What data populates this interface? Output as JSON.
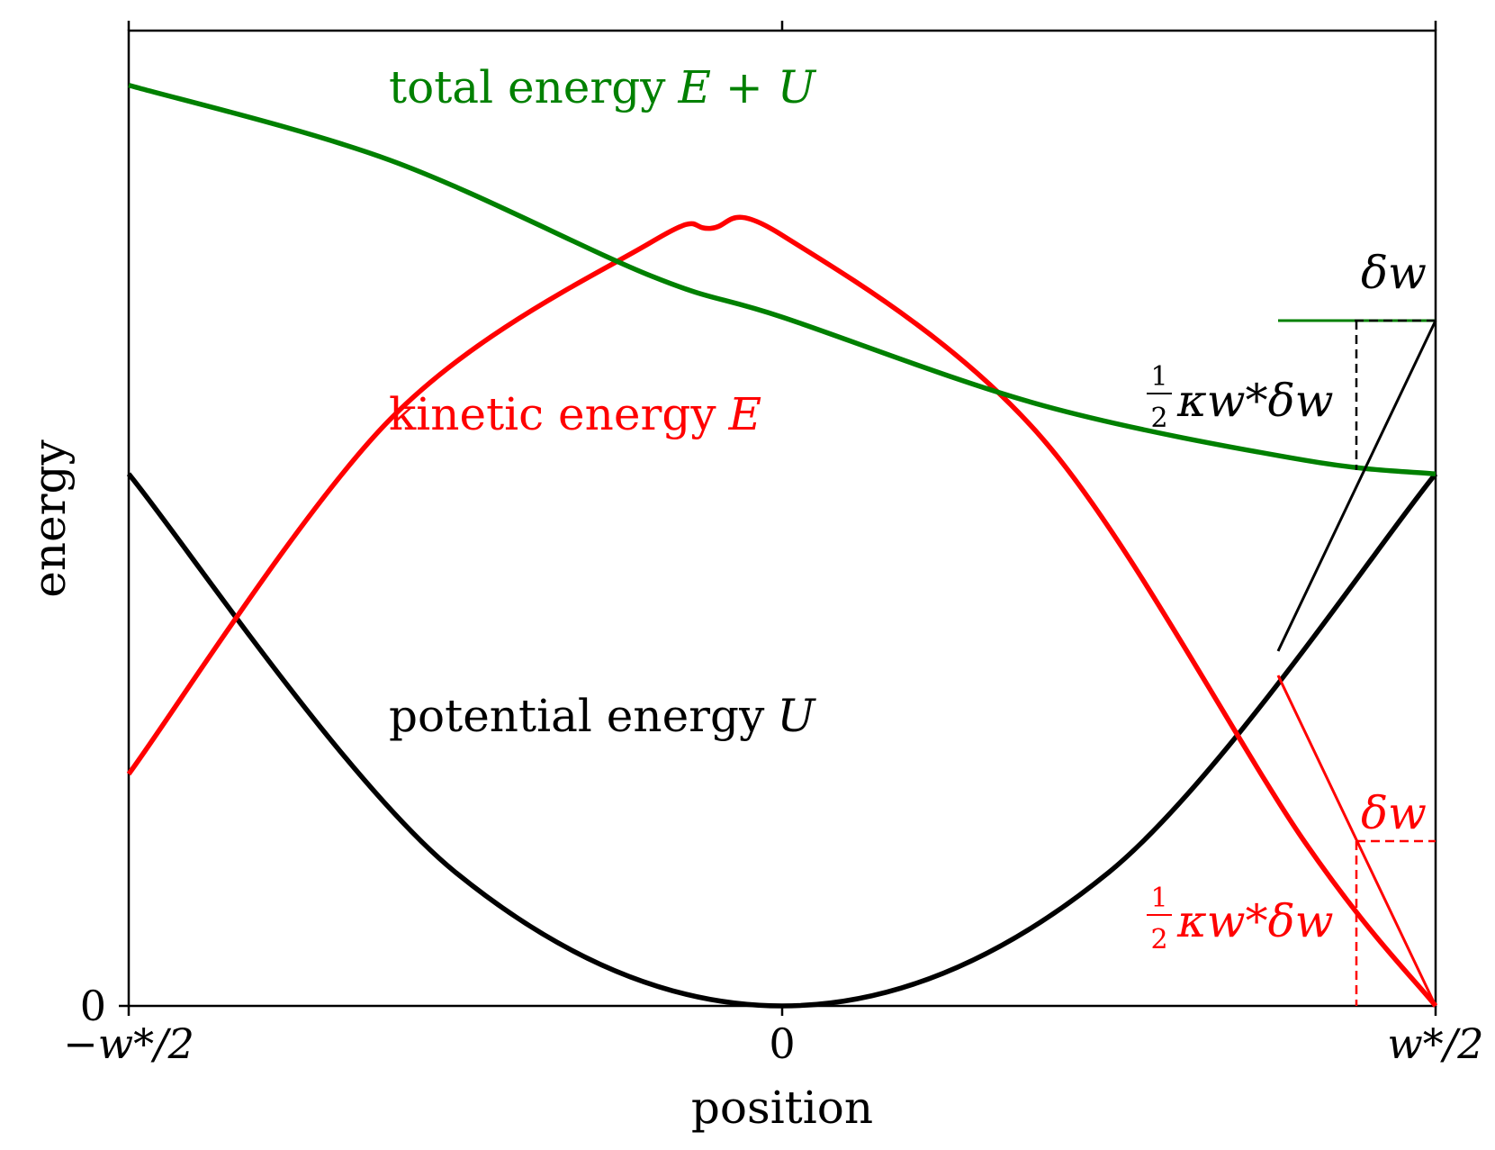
{
  "chart_data": {
    "type": "line",
    "xlabel": "position",
    "ylabel": "energy",
    "x_ticks": [
      "−w*/2",
      "0",
      "w*/2"
    ],
    "y_ticks": [
      "0"
    ],
    "xlim": [
      -0.5,
      0.5
    ],
    "ylim": [
      0,
      1.43
    ],
    "series": [
      {
        "name": "total energy E + U",
        "color": "#008000",
        "x": [
          -0.5,
          -0.3,
          -0.1,
          0.0,
          0.2,
          0.4,
          0.5
        ],
        "y": [
          1.35,
          1.24,
          1.07,
          1.01,
          0.88,
          0.8,
          0.78
        ]
      },
      {
        "name": "kinetic energy E",
        "color": "#ff0000",
        "x": [
          -0.5,
          -0.3,
          -0.1,
          -0.055,
          0.0,
          0.2,
          0.4,
          0.5
        ],
        "y": [
          0.34,
          0.86,
          1.12,
          1.14,
          1.13,
          0.83,
          0.24,
          0.0
        ]
      },
      {
        "name": "potential energy U",
        "color": "#000000",
        "x": [
          -0.5,
          -0.25,
          0.0,
          0.25,
          0.5
        ],
        "y": [
          0.78,
          0.196,
          0.0,
          0.196,
          0.78
        ]
      }
    ],
    "annotations": {
      "total_label": "total energy",
      "total_math": "E + U",
      "kinetic_label": "kinetic energy",
      "kinetic_math": "E",
      "potential_label": "potential energy",
      "potential_math": "U",
      "delta_w": "δw",
      "half_num": "1",
      "half_den": "2",
      "half_expr": "κw*δw"
    }
  }
}
